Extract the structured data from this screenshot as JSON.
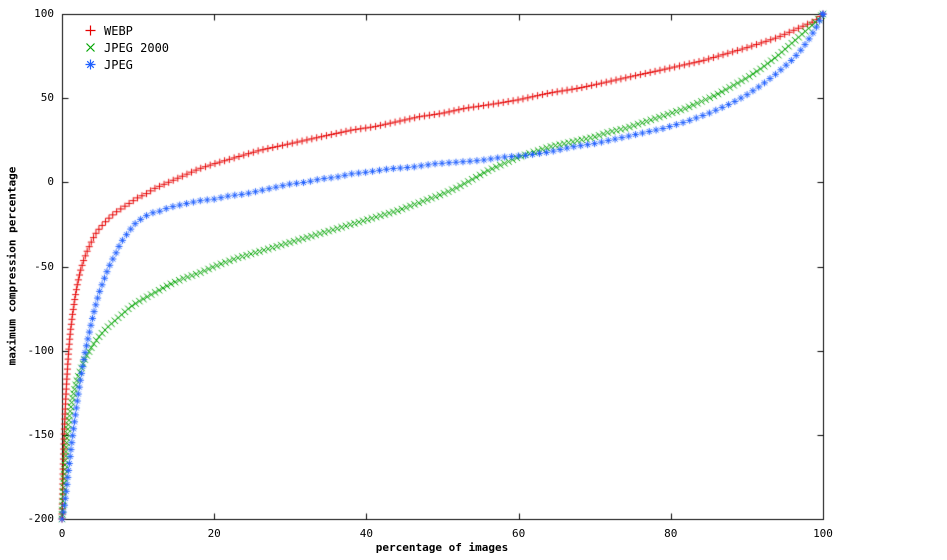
{
  "chart_data": {
    "type": "scatter",
    "title": "",
    "xlabel": "percentage of images",
    "ylabel": "maximum compression percentage",
    "xlim": [
      0,
      100
    ],
    "ylim": [
      -200,
      100
    ],
    "xticks": [
      0,
      20,
      40,
      60,
      80,
      100
    ],
    "yticks": [
      100,
      50,
      0,
      -50,
      -100,
      -150,
      -200
    ],
    "grid": false,
    "legend_position": "top-left",
    "background_color": "#ffffff",
    "axis_color": "#000000",
    "series": [
      {
        "name": "WEBP",
        "marker": "plus",
        "color": "#e60000",
        "marker_spacing_px": 5,
        "points": [
          [
            0,
            -200
          ],
          [
            0.15,
            -170
          ],
          [
            0.3,
            -148
          ],
          [
            0.5,
            -128
          ],
          [
            0.7,
            -112
          ],
          [
            0.9,
            -99
          ],
          [
            1.1,
            -89
          ],
          [
            1.4,
            -78
          ],
          [
            1.7,
            -69
          ],
          [
            2,
            -61
          ],
          [
            2.4,
            -53
          ],
          [
            2.8,
            -47
          ],
          [
            3.2,
            -42
          ],
          [
            3.6,
            -38
          ],
          [
            4,
            -34
          ],
          [
            4.5,
            -30
          ],
          [
            5,
            -27
          ],
          [
            6,
            -22
          ],
          [
            7,
            -18
          ],
          [
            8,
            -15
          ],
          [
            9,
            -12
          ],
          [
            10,
            -9
          ],
          [
            11,
            -7
          ],
          [
            12,
            -4
          ],
          [
            13,
            -2
          ],
          [
            14,
            0
          ],
          [
            16,
            4
          ],
          [
            18,
            8
          ],
          [
            20,
            11
          ],
          [
            23,
            15
          ],
          [
            26,
            19
          ],
          [
            29,
            22
          ],
          [
            32,
            25
          ],
          [
            35,
            28
          ],
          [
            38,
            31
          ],
          [
            41,
            33
          ],
          [
            44,
            36
          ],
          [
            47,
            39
          ],
          [
            50,
            41
          ],
          [
            53,
            44
          ],
          [
            56,
            46
          ],
          [
            60,
            49
          ],
          [
            64,
            53
          ],
          [
            68,
            56
          ],
          [
            72,
            60
          ],
          [
            76,
            64
          ],
          [
            80,
            68
          ],
          [
            84,
            72
          ],
          [
            87,
            76
          ],
          [
            90,
            80
          ],
          [
            92,
            83
          ],
          [
            94,
            86
          ],
          [
            96,
            90
          ],
          [
            97,
            92
          ],
          [
            98,
            94
          ],
          [
            99,
            96
          ],
          [
            99.5,
            98
          ],
          [
            100,
            100
          ]
        ]
      },
      {
        "name": "JPEG 2000",
        "marker": "cross",
        "color": "#00a400",
        "marker_spacing_px": 4.5,
        "points": [
          [
            0,
            -200
          ],
          [
            0.2,
            -182
          ],
          [
            0.4,
            -167
          ],
          [
            0.6,
            -155
          ],
          [
            0.8,
            -146
          ],
          [
            1,
            -138
          ],
          [
            1.3,
            -130
          ],
          [
            1.6,
            -124
          ],
          [
            2,
            -117
          ],
          [
            2.5,
            -111
          ],
          [
            3,
            -105
          ],
          [
            3.5,
            -101
          ],
          [
            4,
            -97
          ],
          [
            5,
            -91
          ],
          [
            6,
            -86
          ],
          [
            7,
            -82
          ],
          [
            8,
            -78
          ],
          [
            9,
            -74
          ],
          [
            10,
            -71
          ],
          [
            12,
            -66
          ],
          [
            14,
            -61
          ],
          [
            16,
            -57
          ],
          [
            18,
            -54
          ],
          [
            20,
            -50
          ],
          [
            23,
            -45
          ],
          [
            26,
            -41
          ],
          [
            29,
            -37
          ],
          [
            32,
            -33
          ],
          [
            35,
            -29
          ],
          [
            38,
            -25
          ],
          [
            41,
            -21
          ],
          [
            44,
            -17
          ],
          [
            47,
            -12
          ],
          [
            50,
            -7
          ],
          [
            52,
            -3
          ],
          [
            54,
            2
          ],
          [
            56,
            7
          ],
          [
            58,
            11
          ],
          [
            60,
            15
          ],
          [
            62,
            18
          ],
          [
            64,
            21
          ],
          [
            66,
            23
          ],
          [
            68,
            25
          ],
          [
            70,
            27
          ],
          [
            72,
            30
          ],
          [
            74,
            32
          ],
          [
            76,
            35
          ],
          [
            78,
            38
          ],
          [
            80,
            41
          ],
          [
            82,
            44
          ],
          [
            84,
            48
          ],
          [
            86,
            52
          ],
          [
            88,
            57
          ],
          [
            90,
            62
          ],
          [
            92,
            68
          ],
          [
            94,
            75
          ],
          [
            96,
            83
          ],
          [
            97,
            87
          ],
          [
            98,
            91
          ],
          [
            99,
            95
          ],
          [
            100,
            100
          ]
        ]
      },
      {
        "name": "JPEG",
        "marker": "asterisk",
        "color": "#2060ff",
        "marker_spacing_px": 7,
        "points": [
          [
            0,
            -200
          ],
          [
            0.3,
            -193
          ],
          [
            0.6,
            -182
          ],
          [
            0.9,
            -170
          ],
          [
            1.2,
            -158
          ],
          [
            1.5,
            -147
          ],
          [
            1.8,
            -137
          ],
          [
            2.1,
            -127
          ],
          [
            2.4,
            -118
          ],
          [
            2.7,
            -110
          ],
          [
            3,
            -102
          ],
          [
            3.4,
            -93
          ],
          [
            3.8,
            -85
          ],
          [
            4.2,
            -77
          ],
          [
            4.6,
            -70
          ],
          [
            5,
            -64
          ],
          [
            5.5,
            -58
          ],
          [
            6,
            -52
          ],
          [
            6.5,
            -47
          ],
          [
            7,
            -43
          ],
          [
            7.5,
            -38
          ],
          [
            8,
            -34
          ],
          [
            8.5,
            -31
          ],
          [
            9,
            -28
          ],
          [
            9.5,
            -25
          ],
          [
            10,
            -23
          ],
          [
            11,
            -20
          ],
          [
            12,
            -18
          ],
          [
            13,
            -17
          ],
          [
            14,
            -15
          ],
          [
            16,
            -13
          ],
          [
            18,
            -11
          ],
          [
            20,
            -10
          ],
          [
            22,
            -8
          ],
          [
            24,
            -7
          ],
          [
            26,
            -5
          ],
          [
            28,
            -3
          ],
          [
            30,
            -1
          ],
          [
            32,
            0
          ],
          [
            34,
            2
          ],
          [
            36,
            3
          ],
          [
            38,
            5
          ],
          [
            40,
            6
          ],
          [
            43,
            8
          ],
          [
            46,
            9
          ],
          [
            49,
            11
          ],
          [
            52,
            12
          ],
          [
            55,
            13
          ],
          [
            58,
            15
          ],
          [
            61,
            16
          ],
          [
            64,
            18
          ],
          [
            67,
            21
          ],
          [
            70,
            23
          ],
          [
            73,
            26
          ],
          [
            76,
            29
          ],
          [
            79,
            32
          ],
          [
            82,
            36
          ],
          [
            85,
            41
          ],
          [
            88,
            47
          ],
          [
            90,
            52
          ],
          [
            92,
            58
          ],
          [
            94,
            65
          ],
          [
            96,
            73
          ],
          [
            97,
            78
          ],
          [
            98,
            84
          ],
          [
            99,
            91
          ],
          [
            100,
            100
          ]
        ]
      }
    ]
  }
}
